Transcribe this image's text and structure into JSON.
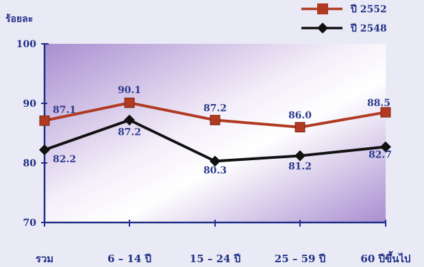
{
  "chart_data": {
    "type": "line",
    "ylabel": "ร้อยละ",
    "ylim": [
      70,
      100
    ],
    "yticks": [
      "70",
      "80",
      "90",
      "100"
    ],
    "categories": [
      "รวม",
      "6 – 14 ปี",
      "15 – 24 ปี",
      "25 – 59 ปี",
      "60 ปีขึ้นไป"
    ],
    "series": [
      {
        "name": "ปี 2552",
        "values": [
          87.1,
          90.1,
          87.2,
          86.0,
          88.5
        ],
        "labels": [
          "87.1",
          "90.1",
          "87.2",
          "86.0",
          "88.5"
        ],
        "color": "#b03a22",
        "marker": "square"
      },
      {
        "name": "ปี 2548",
        "values": [
          82.2,
          87.2,
          80.3,
          81.2,
          82.7
        ],
        "labels": [
          "82.2",
          "87.2",
          "80.3",
          "81.2",
          "82.7"
        ],
        "color": "#111111",
        "marker": "diamond"
      }
    ],
    "legend_position": "top-right",
    "grid": false
  },
  "colors": {
    "axis": "#1f2f86",
    "plot_gradient_dark": "#b49ad6",
    "plot_gradient_light": "#ffffff"
  }
}
